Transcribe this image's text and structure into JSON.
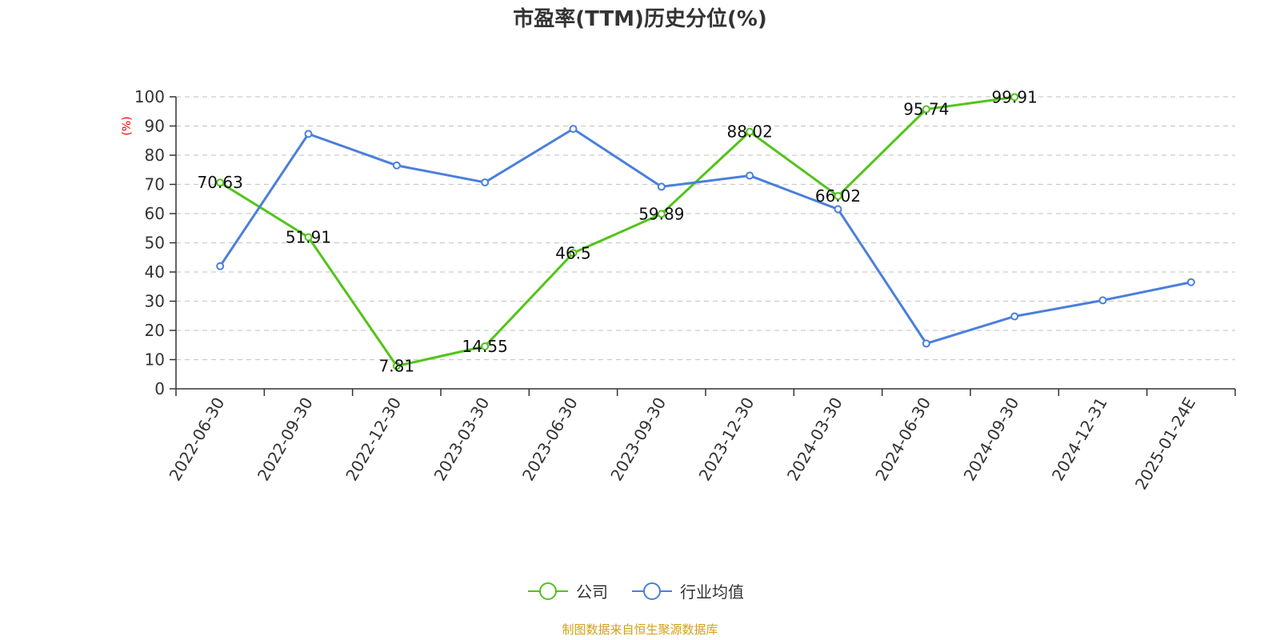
{
  "chart_data": {
    "type": "line",
    "title": "市盈率(TTM)历史分位(%)",
    "ylabel": "(%)",
    "ylim": [
      0,
      100
    ],
    "yticks": [
      0,
      10,
      20,
      30,
      40,
      50,
      60,
      70,
      80,
      90,
      100
    ],
    "categories": [
      "2022-06-30",
      "2022-09-30",
      "2022-12-30",
      "2023-03-30",
      "2023-06-30",
      "2023-09-30",
      "2023-12-30",
      "2024-03-30",
      "2024-06-30",
      "2024-09-30",
      "2024-12-31",
      "2025-01-24E"
    ],
    "grid": true,
    "legend_position": "bottom",
    "series": [
      {
        "name": "公司",
        "color": "#52c41a",
        "values": [
          70.63,
          51.91,
          7.81,
          14.55,
          46.5,
          59.89,
          88.02,
          66.02,
          95.74,
          99.91,
          null,
          null
        ],
        "labels": [
          "70.63",
          "51.91",
          "7.81",
          "14.55",
          "46.5",
          "59.89",
          "88.02",
          "66.02",
          "95.74",
          "99.91",
          "",
          ""
        ]
      },
      {
        "name": "行业均值",
        "color": "#4a7fdc",
        "values": [
          42,
          87.3,
          76.5,
          70.7,
          89,
          69.2,
          73,
          61.5,
          15.5,
          24.8,
          30.3,
          36.5
        ]
      }
    ]
  },
  "source": {
    "text": "制图数据来自恒生聚源数据库",
    "color": "#d4a017"
  },
  "colors": {
    "unit_label": "#ff0000",
    "grid": "#cccccc",
    "axis": "#333333"
  }
}
